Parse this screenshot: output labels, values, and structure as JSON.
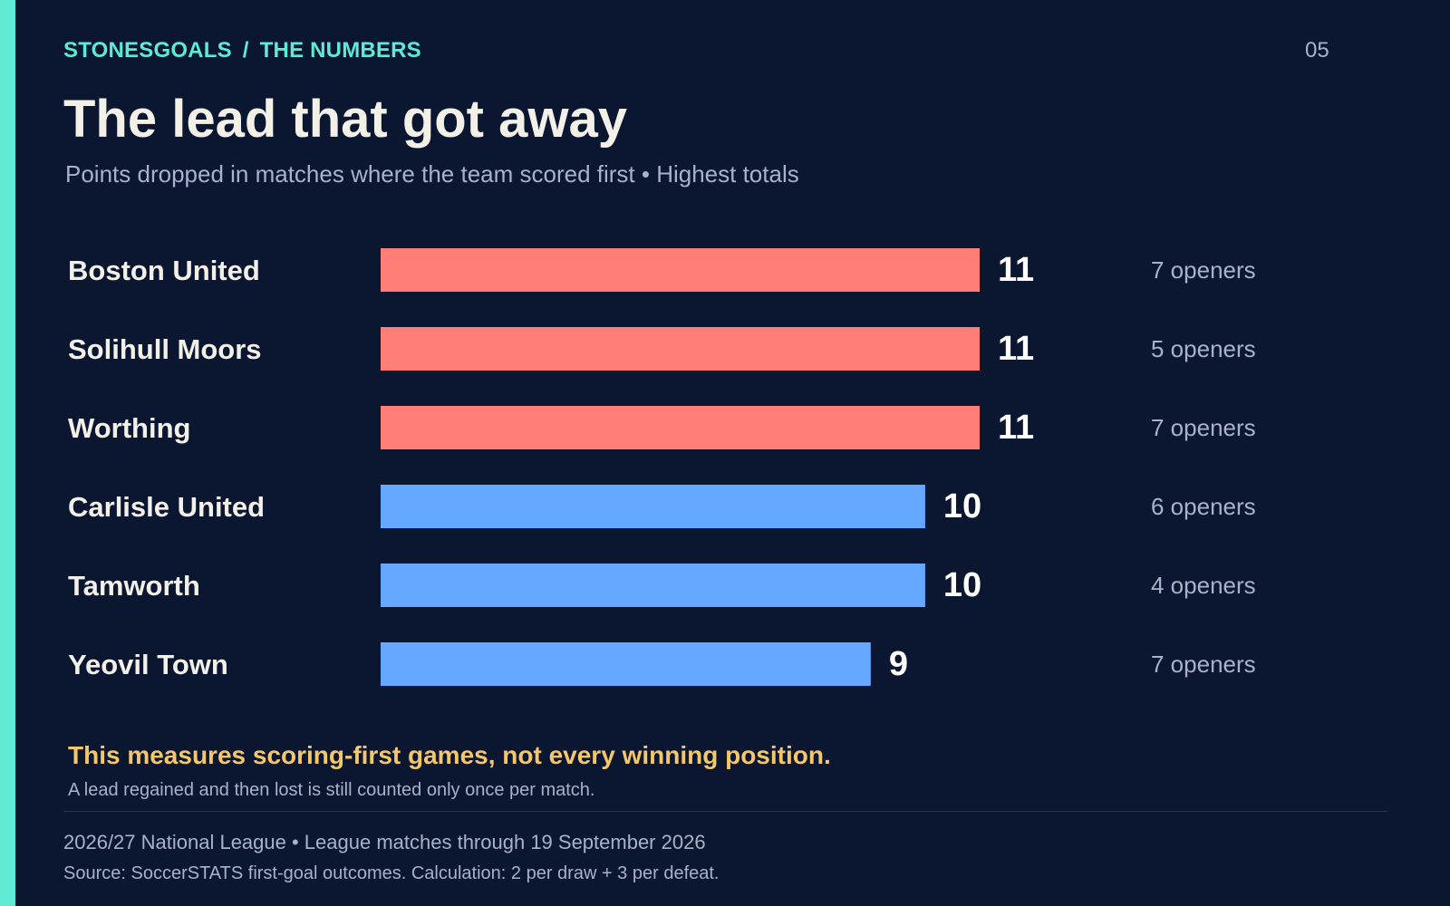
{
  "header": {
    "brand": "STONESGOALS",
    "brand_separator": "/",
    "section": "THE NUMBERS",
    "page_number": "05"
  },
  "title": "The lead that got away",
  "subtitle": "Points dropped in matches where the team scored first • Highest totals",
  "chart_data": {
    "type": "bar",
    "orientation": "horizontal",
    "categories": [
      "Boston United",
      "Solihull Moors",
      "Worthing",
      "Carlisle United",
      "Tamworth",
      "Yeovil Town"
    ],
    "values": [
      11,
      11,
      11,
      10,
      10,
      9
    ],
    "value_labels": [
      "11",
      "11",
      "11",
      "10",
      "10",
      "9"
    ],
    "side_labels": [
      "7 openers",
      "5 openers",
      "7 openers",
      "6 openers",
      "4 openers",
      "7 openers"
    ],
    "highlight": [
      true,
      true,
      true,
      false,
      false,
      false
    ],
    "colors": {
      "highlight": "#ff7f78",
      "default": "#64a8ff"
    },
    "xlim": [
      0,
      11
    ],
    "grid": false,
    "legend": "none"
  },
  "note": {
    "headline": "This measures scoring-first games, not every winning position.",
    "body": "A lead regained and then lost is still counted only once per match."
  },
  "footer": {
    "context": "2026/27 National League • League matches through 19 September 2026",
    "source": "Source: SoccerSTATS first-goal outcomes. Calculation: 2 per draw + 3 per defeat."
  },
  "colors": {
    "background": "#0b1631",
    "accent": "#5eead4",
    "note": "#f5c76b",
    "text_primary": "#f3f0e8",
    "text_muted": "#a8b3c7"
  }
}
